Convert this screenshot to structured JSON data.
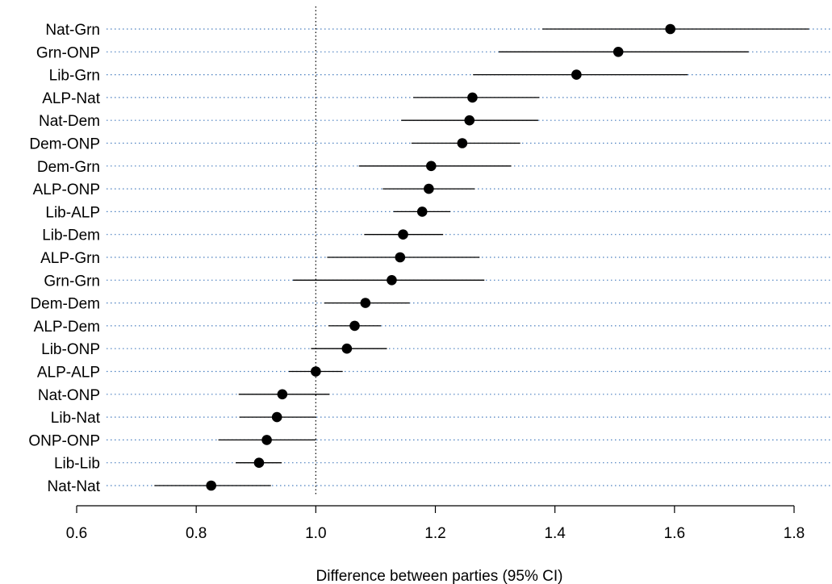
{
  "chart_data": {
    "type": "scatter",
    "title": "",
    "xlabel": "Difference between parties (95% CI)",
    "ylabel": "",
    "xlim": [
      0.6,
      1.85
    ],
    "xticks": [
      0.6,
      0.8,
      1.0,
      1.2,
      1.4,
      1.6,
      1.8
    ],
    "xtick_labels": [
      "0.6",
      "0.8",
      "1.0",
      "1.2",
      "1.4",
      "1.6",
      "1.8"
    ],
    "reference_line": 1.0,
    "grid": "dotted horizontal per category",
    "point_color": "#000000",
    "grid_color": "#4a7fbf",
    "categories": [
      "Nat-Grn",
      "Grn-ONP",
      "Lib-Grn",
      "ALP-Nat",
      "Nat-Dem",
      "Dem-ONP",
      "Dem-Grn",
      "ALP-ONP",
      "Lib-ALP",
      "Lib-Dem",
      "ALP-Grn",
      "Grn-Grn",
      "Dem-Dem",
      "ALP-Dem",
      "Lib-ONP",
      "ALP-ALP",
      "Nat-ONP",
      "Lib-Nat",
      "ONP-ONP",
      "Lib-Lib",
      "Nat-Nat"
    ],
    "estimate": [
      1.593,
      1.506,
      1.436,
      1.262,
      1.257,
      1.245,
      1.193,
      1.189,
      1.178,
      1.146,
      1.141,
      1.127,
      1.083,
      1.065,
      1.052,
      1.0,
      0.944,
      0.935,
      0.918,
      0.905,
      0.825
    ],
    "lower": [
      1.379,
      1.306,
      1.263,
      1.163,
      1.143,
      1.16,
      1.072,
      1.112,
      1.13,
      1.081,
      1.019,
      0.962,
      1.014,
      1.021,
      0.992,
      0.955,
      0.871,
      0.872,
      0.837,
      0.866,
      0.73
    ],
    "upper": [
      1.825,
      1.724,
      1.622,
      1.374,
      1.372,
      1.342,
      1.327,
      1.266,
      1.225,
      1.213,
      1.274,
      1.282,
      1.157,
      1.109,
      1.119,
      1.045,
      1.023,
      1.0,
      1.0,
      0.943,
      0.925
    ]
  }
}
